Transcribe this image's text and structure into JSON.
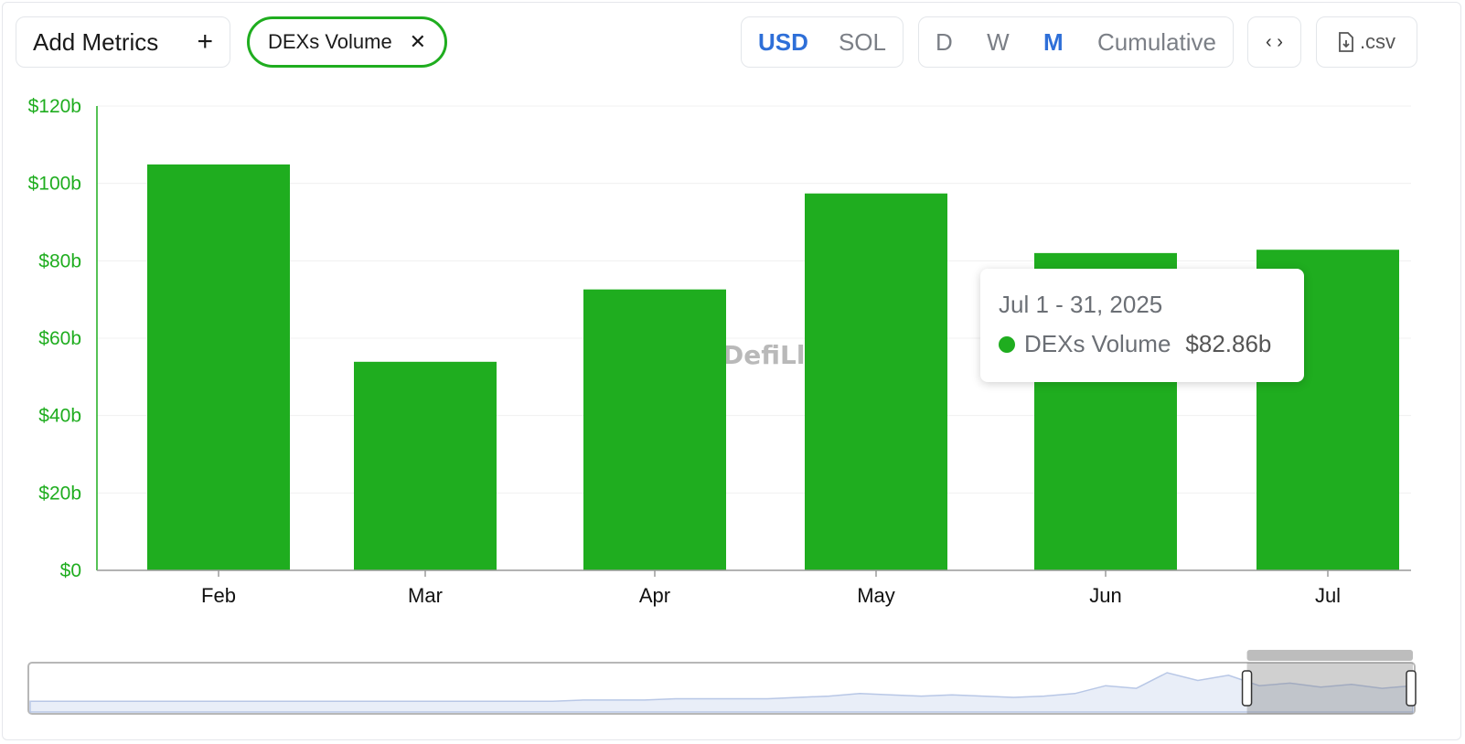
{
  "toolbar": {
    "add_metrics_label": "Add Metrics",
    "add_icon": "plus-icon",
    "metric_chip_label": "DEXs Volume",
    "remove_icon": "close-icon",
    "currency_options": [
      "USD",
      "SOL"
    ],
    "currency_selected": "USD",
    "interval_options": [
      "D",
      "W",
      "M",
      "Cumulative"
    ],
    "interval_selected": "M",
    "embed_icon": "code-icon",
    "csv_icon": "file-download-icon",
    "csv_label": ".csv"
  },
  "colors": {
    "bar": "#1fad1f",
    "axis_text": "#1fad1f",
    "active_option": "#2e6fd8"
  },
  "watermark": "DefiLla",
  "tooltip": {
    "date": "Jul 1 - 31, 2025",
    "series": "DEXs Volume",
    "value": "$82.86b"
  },
  "chart_data": {
    "type": "bar",
    "categories": [
      "Feb",
      "Mar",
      "Apr",
      "May",
      "Jun",
      "Jul"
    ],
    "series": [
      {
        "name": "DEXs Volume",
        "values": [
          104.9,
          53.9,
          72.6,
          97.4,
          82.0,
          82.86
        ]
      }
    ],
    "ylim": [
      0,
      120
    ],
    "yticks": [
      0,
      20,
      40,
      60,
      80,
      100,
      120
    ],
    "ytick_labels": [
      "$0",
      "$20b",
      "$40b",
      "$60b",
      "$80b",
      "$100b",
      "$120b"
    ],
    "grid": true
  },
  "range_selector": {
    "overview_values": [
      4,
      4,
      4,
      4,
      4,
      4,
      4,
      4,
      4,
      4,
      4,
      4,
      4,
      4,
      4,
      4,
      4,
      4,
      5,
      5,
      5,
      6,
      6,
      6,
      6,
      7,
      8,
      10,
      9,
      8,
      9,
      8,
      7,
      8,
      10,
      16,
      14,
      26,
      20,
      24,
      16,
      18,
      15,
      17,
      14,
      16
    ],
    "selected_start": 0.88,
    "selected_end": 1.0
  }
}
